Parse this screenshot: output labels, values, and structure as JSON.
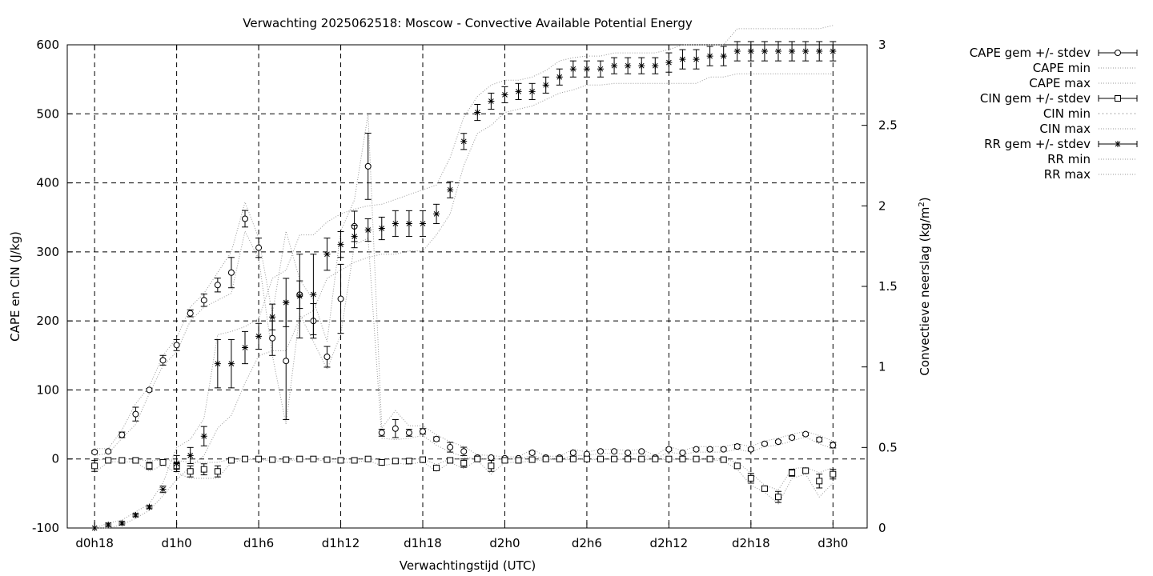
{
  "chart_data": {
    "type": "scatter",
    "title": "Verwachting 2025062518: Moscow - Convective Available Potential Energy",
    "xlabel": "Verwachtingstijd (UTC)",
    "ylabel": "CAPE en CIN (J/kg)",
    "y2label": "Convectieve neerslag (kg/m²)",
    "x_unit": "hours since d0h18",
    "xlim": [
      -2,
      56.5
    ],
    "ylim": [
      -100,
      600
    ],
    "y2lim": [
      0,
      3
    ],
    "grid": true,
    "legend_position": "top-right outside",
    "x_ticks": [
      {
        "x": 0,
        "label": "d0h18"
      },
      {
        "x": 6,
        "label": "d1h0"
      },
      {
        "x": 12,
        "label": "d1h6"
      },
      {
        "x": 18,
        "label": "d1h12"
      },
      {
        "x": 24,
        "label": "d1h18"
      },
      {
        "x": 30,
        "label": "d2h0"
      },
      {
        "x": 36,
        "label": "d2h6"
      },
      {
        "x": 42,
        "label": "d2h12"
      },
      {
        "x": 48,
        "label": "d2h18"
      },
      {
        "x": 54,
        "label": "d3h0"
      }
    ],
    "y_ticks": [
      "-100",
      "0",
      "100",
      "200",
      "300",
      "400",
      "500",
      "600"
    ],
    "y2_ticks": [
      "0",
      "0.5",
      "1",
      "1.5",
      "2",
      "2.5",
      "3"
    ],
    "legend": [
      "CAPE gem +/- stdev",
      "CAPE min",
      "CAPE max",
      "CIN gem +/- stdev",
      "CIN min",
      "CIN max",
      "RR gem +/- stdev",
      "RR min",
      "RR max"
    ],
    "x": [
      0,
      1,
      2,
      3,
      4,
      5,
      6,
      7,
      8,
      9,
      10,
      11,
      12,
      13,
      14,
      15,
      16,
      17,
      18,
      19,
      20,
      21,
      22,
      23,
      24,
      25,
      26,
      27,
      28,
      29,
      30,
      31,
      32,
      33,
      34,
      35,
      36,
      37,
      38,
      39,
      40,
      41,
      42,
      43,
      44,
      45,
      46,
      47,
      48,
      49,
      50,
      51,
      52,
      53,
      54
    ],
    "series": [
      {
        "name": "CAPE gem +/- stdev",
        "marker": "circle",
        "axis": "y1",
        "mean": [
          10,
          11,
          35,
          65,
          100,
          143,
          165,
          211,
          230,
          252,
          270,
          348,
          306,
          175,
          142,
          238,
          200,
          148,
          232,
          337,
          424,
          38,
          44,
          38,
          40,
          29,
          17,
          11,
          2,
          2,
          1,
          1,
          9,
          2,
          2,
          9,
          7,
          11,
          11,
          9,
          11,
          2,
          14,
          9,
          14,
          14,
          14,
          18,
          14,
          22,
          25,
          31,
          36,
          28,
          20
        ],
        "stdev": [
          2,
          2,
          4,
          10,
          2,
          7,
          8,
          5,
          9,
          10,
          22,
          12,
          14,
          25,
          85,
          20,
          25,
          15,
          50,
          22,
          48,
          5,
          13,
          5,
          4,
          3,
          7,
          6,
          2,
          1,
          1,
          1,
          2,
          1,
          1,
          2,
          1,
          1,
          1,
          1,
          1,
          1,
          2,
          1,
          2,
          2,
          2,
          3,
          2,
          2,
          2,
          2,
          2,
          3,
          4
        ]
      },
      {
        "name": "CAPE min",
        "line": "dotted",
        "axis": "y1",
        "values": [
          5,
          8,
          30,
          50,
          95,
          135,
          155,
          200,
          220,
          230,
          240,
          330,
          290,
          150,
          50,
          210,
          170,
          130,
          180,
          310,
          320,
          30,
          28,
          30,
          34,
          20,
          10,
          3,
          0,
          0,
          0,
          0,
          5,
          0,
          0,
          5,
          5,
          8,
          8,
          7,
          8,
          0,
          10,
          7,
          10,
          10,
          10,
          14,
          10,
          18,
          20,
          26,
          32,
          22,
          15
        ]
      },
      {
        "name": "CAPE max",
        "line": "dotted",
        "axis": "y1",
        "values": [
          15,
          15,
          42,
          80,
          105,
          150,
          175,
          220,
          240,
          270,
          300,
          372,
          320,
          210,
          330,
          260,
          230,
          170,
          330,
          375,
          500,
          45,
          70,
          48,
          48,
          35,
          25,
          18,
          6,
          5,
          3,
          3,
          14,
          4,
          4,
          14,
          10,
          14,
          14,
          12,
          14,
          5,
          18,
          12,
          18,
          18,
          18,
          22,
          18,
          26,
          30,
          36,
          40,
          34,
          26
        ]
      },
      {
        "name": "CIN gem +/- stdev",
        "marker": "square",
        "axis": "y1",
        "mean": [
          -10,
          -2,
          -2,
          -2,
          -10,
          -5,
          -10,
          -18,
          -15,
          -18,
          -2,
          0,
          0,
          -1,
          -1,
          0,
          0,
          -1,
          -2,
          -2,
          0,
          -5,
          -3,
          -3,
          -1,
          -13,
          -2,
          -6,
          0,
          -10,
          -2,
          -2,
          -1,
          0,
          0,
          0,
          0,
          0,
          0,
          0,
          0,
          0,
          0,
          0,
          0,
          0,
          -1,
          -10,
          -28,
          -43,
          -55,
          -20,
          -17,
          -32,
          -22
        ],
        "stdev": [
          8,
          1,
          1,
          1,
          5,
          3,
          5,
          8,
          8,
          8,
          2,
          0,
          0,
          1,
          1,
          0,
          0,
          1,
          2,
          2,
          1,
          4,
          2,
          3,
          2,
          4,
          2,
          6,
          1,
          8,
          2,
          2,
          1,
          1,
          1,
          1,
          1,
          1,
          1,
          1,
          1,
          1,
          1,
          1,
          1,
          1,
          1,
          3,
          7,
          3,
          8,
          5,
          3,
          10,
          7
        ]
      },
      {
        "name": "CIN min",
        "line": "dotted",
        "axis": "y1",
        "values": [
          -20,
          -4,
          -4,
          -4,
          -18,
          -9,
          -20,
          -28,
          -28,
          -28,
          -5,
          -1,
          -1,
          -3,
          -3,
          -1,
          -1,
          -3,
          -5,
          -5,
          -2,
          -10,
          -6,
          -8,
          -4,
          -18,
          -5,
          -14,
          -2,
          -22,
          -5,
          -5,
          -3,
          -1,
          -1,
          -1,
          -1,
          -1,
          -1,
          -1,
          -1,
          -1,
          -1,
          -1,
          -1,
          -1,
          -3,
          -15,
          -38,
          -48,
          -65,
          -28,
          -22,
          -55,
          -35
        ]
      },
      {
        "name": "CIN max",
        "line": "dotted",
        "axis": "y1",
        "values": [
          -2,
          0,
          0,
          0,
          -3,
          -1,
          -2,
          -5,
          -5,
          -5,
          0,
          0,
          0,
          0,
          0,
          0,
          0,
          0,
          0,
          0,
          0,
          -1,
          0,
          0,
          0,
          -8,
          0,
          0,
          0,
          0,
          0,
          0,
          0,
          0,
          0,
          0,
          0,
          0,
          0,
          0,
          0,
          0,
          0,
          0,
          0,
          0,
          0,
          -5,
          -20,
          -38,
          -45,
          -14,
          -12,
          -20,
          -12
        ]
      },
      {
        "name": "RR gem +/- stdev",
        "marker": "star",
        "axis": "y2",
        "mean": [
          0.0,
          0.02,
          0.03,
          0.08,
          0.13,
          0.24,
          0.4,
          0.45,
          0.57,
          1.02,
          1.02,
          1.12,
          1.19,
          1.31,
          1.4,
          1.44,
          1.45,
          1.7,
          1.76,
          1.81,
          1.85,
          1.86,
          1.89,
          1.89,
          1.89,
          1.95,
          2.1,
          2.4,
          2.58,
          2.65,
          2.69,
          2.71,
          2.71,
          2.75,
          2.8,
          2.85,
          2.85,
          2.85,
          2.87,
          2.87,
          2.87,
          2.87,
          2.89,
          2.91,
          2.91,
          2.93,
          2.93,
          2.96,
          2.96,
          2.96,
          2.96,
          2.96,
          2.96,
          2.96,
          2.96
        ],
        "stdev": [
          0.0,
          0.01,
          0.01,
          0.01,
          0.01,
          0.02,
          0.05,
          0.05,
          0.06,
          0.15,
          0.15,
          0.1,
          0.08,
          0.08,
          0.15,
          0.26,
          0.25,
          0.1,
          0.08,
          0.07,
          0.07,
          0.07,
          0.08,
          0.08,
          0.08,
          0.06,
          0.05,
          0.05,
          0.05,
          0.05,
          0.05,
          0.05,
          0.05,
          0.05,
          0.05,
          0.05,
          0.05,
          0.05,
          0.05,
          0.05,
          0.05,
          0.05,
          0.06,
          0.06,
          0.06,
          0.06,
          0.06,
          0.06,
          0.06,
          0.06,
          0.06,
          0.06,
          0.06,
          0.06,
          0.06
        ]
      },
      {
        "name": "RR min",
        "line": "dotted",
        "axis": "y2",
        "values": [
          0.0,
          0.0,
          0.02,
          0.06,
          0.11,
          0.2,
          0.3,
          0.38,
          0.45,
          0.62,
          0.7,
          0.9,
          1.07,
          1.1,
          1.1,
          1.3,
          1.35,
          1.55,
          1.6,
          1.65,
          1.68,
          1.7,
          1.7,
          1.72,
          1.72,
          1.82,
          1.95,
          2.25,
          2.45,
          2.5,
          2.58,
          2.6,
          2.62,
          2.66,
          2.7,
          2.72,
          2.75,
          2.75,
          2.76,
          2.76,
          2.76,
          2.76,
          2.76,
          2.76,
          2.76,
          2.8,
          2.8,
          2.82,
          2.82,
          2.82,
          2.82,
          2.82,
          2.82,
          2.82,
          2.82
        ]
      },
      {
        "name": "RR max",
        "line": "dotted",
        "axis": "y2",
        "values": [
          0.0,
          0.03,
          0.05,
          0.1,
          0.15,
          0.28,
          0.5,
          0.55,
          0.68,
          1.2,
          1.22,
          1.25,
          1.3,
          1.55,
          1.6,
          1.82,
          1.82,
          1.9,
          1.95,
          1.98,
          2.0,
          2.01,
          2.04,
          2.07,
          2.1,
          2.13,
          2.3,
          2.55,
          2.68,
          2.75,
          2.78,
          2.78,
          2.8,
          2.84,
          2.9,
          2.92,
          2.93,
          2.93,
          2.95,
          2.95,
          2.95,
          2.95,
          2.97,
          3.0,
          3.0,
          3.0,
          3.0,
          3.1,
          3.1,
          3.1,
          3.1,
          3.1,
          3.1,
          3.1,
          3.12
        ]
      }
    ]
  }
}
